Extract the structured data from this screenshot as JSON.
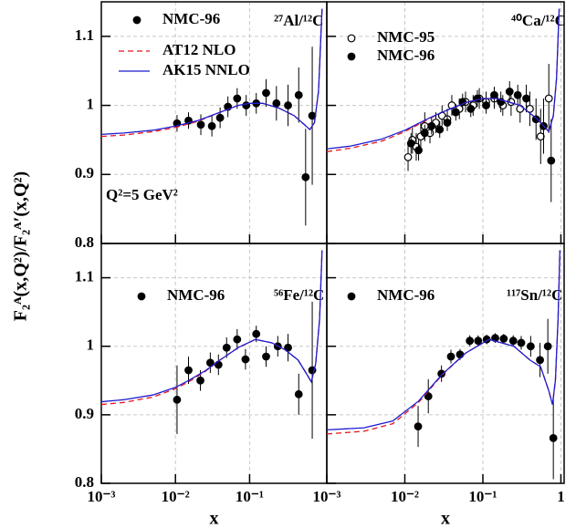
{
  "y_label": "F₂ᴬ(x,Q²)/F₂ᴬ′(x,Q²)",
  "chart_data": [
    {
      "type": "scatter",
      "title": "²⁷Al/¹²C",
      "annotation": "Q²=5 GeV²",
      "xlog": true,
      "xlim": [
        0.001,
        1.1
      ],
      "ylim": [
        0.8,
        1.15
      ],
      "grid": true,
      "xticks": [
        0.001,
        0.01,
        0.1
      ],
      "yticks": [
        0.8,
        0.9,
        1,
        1.1
      ],
      "show_xtick_labels": false,
      "show_ytick_labels": true,
      "series": [
        {
          "name": "NMC-96",
          "kind": "points",
          "marker": "filled",
          "color": "#000000",
          "x": [
            0.0105,
            0.015,
            0.022,
            0.031,
            0.04,
            0.051,
            0.068,
            0.09,
            0.123,
            0.167,
            0.23,
            0.33,
            0.46,
            0.57,
            0.7
          ],
          "values": [
            0.974,
            0.978,
            0.972,
            0.97,
            0.982,
            0.998,
            1.01,
            1.0,
            1.003,
            1.018,
            1.003,
            1.0,
            1.015,
            0.896,
            0.985
          ],
          "errors": [
            0.012,
            0.012,
            0.015,
            0.015,
            0.015,
            0.015,
            0.015,
            0.015,
            0.015,
            0.02,
            0.025,
            0.03,
            0.04,
            0.07,
            0.1
          ]
        },
        {
          "name": "AT12  NLO",
          "kind": "line",
          "dash": true,
          "color": "#e8141c",
          "x": [
            0.001,
            0.002,
            0.005,
            0.01,
            0.02,
            0.04,
            0.07,
            0.1,
            0.15,
            0.25,
            0.4,
            0.55,
            0.65,
            0.75,
            0.85,
            0.95
          ],
          "values": [
            0.955,
            0.957,
            0.962,
            0.968,
            0.977,
            0.99,
            1.0,
            1.003,
            1.003,
            0.996,
            0.985,
            0.972,
            0.965,
            0.975,
            1.02,
            1.14
          ]
        },
        {
          "name": "AK15 NNLO",
          "kind": "line",
          "dash": false,
          "color": "#1c1cd0",
          "x": [
            0.001,
            0.002,
            0.005,
            0.01,
            0.02,
            0.04,
            0.07,
            0.1,
            0.15,
            0.25,
            0.4,
            0.55,
            0.65,
            0.75,
            0.85,
            0.95
          ],
          "values": [
            0.958,
            0.96,
            0.964,
            0.97,
            0.978,
            0.99,
            1.0,
            1.003,
            1.003,
            0.996,
            0.985,
            0.972,
            0.965,
            0.975,
            1.02,
            1.14
          ]
        }
      ]
    },
    {
      "type": "scatter",
      "title": "⁴⁰Ca/¹²C",
      "xlog": true,
      "xlim": [
        0.001,
        1.1
      ],
      "ylim": [
        0.8,
        1.15
      ],
      "grid": true,
      "xticks": [
        0.001,
        0.01,
        0.1,
        1
      ],
      "yticks": [
        0.8,
        0.9,
        1,
        1.1
      ],
      "show_xtick_labels": false,
      "show_ytick_labels": false,
      "series": [
        {
          "name": "NMC-95",
          "kind": "points",
          "marker": "open",
          "color": "#000000",
          "x": [
            0.011,
            0.0125,
            0.014,
            0.016,
            0.018,
            0.021,
            0.025,
            0.03,
            0.035,
            0.04,
            0.05,
            0.06,
            0.075,
            0.09,
            0.11,
            0.14,
            0.18,
            0.23,
            0.3,
            0.4,
            0.55,
            0.7
          ],
          "values": [
            0.925,
            0.95,
            0.94,
            0.955,
            0.97,
            0.96,
            0.975,
            0.985,
            0.98,
            1.0,
            0.995,
            1.005,
            1.0,
            1.01,
            1.005,
            1.01,
            1.0,
            1.005,
            0.995,
            0.995,
            0.955,
            1.01
          ],
          "errors": [
            0.02,
            0.02,
            0.02,
            0.02,
            0.02,
            0.015,
            0.015,
            0.015,
            0.015,
            0.015,
            0.015,
            0.015,
            0.015,
            0.015,
            0.015,
            0.015,
            0.015,
            0.02,
            0.02,
            0.025,
            0.04,
            0.05
          ]
        },
        {
          "name": "NMC-96",
          "kind": "points",
          "marker": "filled",
          "color": "#000000",
          "x": [
            0.012,
            0.015,
            0.018,
            0.022,
            0.028,
            0.035,
            0.045,
            0.055,
            0.07,
            0.085,
            0.11,
            0.14,
            0.17,
            0.22,
            0.28,
            0.36,
            0.48,
            0.6,
            0.75
          ],
          "values": [
            0.945,
            0.935,
            0.96,
            0.97,
            0.965,
            0.975,
            0.99,
            1.005,
            0.995,
            1.01,
            1.0,
            1.015,
            1.005,
            1.02,
            1.015,
            1.01,
            0.98,
            0.97,
            0.92
          ],
          "errors": [
            0.015,
            0.015,
            0.012,
            0.012,
            0.012,
            0.012,
            0.012,
            0.012,
            0.012,
            0.012,
            0.012,
            0.012,
            0.015,
            0.015,
            0.015,
            0.02,
            0.03,
            0.04,
            0.06
          ]
        },
        {
          "kind": "line",
          "dash": true,
          "color": "#e8141c",
          "x": [
            0.001,
            0.002,
            0.005,
            0.01,
            0.02,
            0.03,
            0.06,
            0.1,
            0.15,
            0.3,
            0.5,
            0.7,
            0.8,
            0.88,
            0.95
          ],
          "values": [
            0.933,
            0.938,
            0.948,
            0.962,
            0.98,
            0.99,
            1.004,
            1.01,
            1.01,
            1.0,
            0.98,
            0.962,
            0.985,
            1.04,
            1.14
          ]
        },
        {
          "kind": "line",
          "dash": false,
          "color": "#1c1cd0",
          "x": [
            0.001,
            0.002,
            0.005,
            0.01,
            0.02,
            0.03,
            0.06,
            0.1,
            0.15,
            0.3,
            0.5,
            0.7,
            0.8,
            0.88,
            0.95
          ],
          "values": [
            0.937,
            0.941,
            0.951,
            0.964,
            0.981,
            0.99,
            1.004,
            1.01,
            1.01,
            1.0,
            0.98,
            0.962,
            0.985,
            1.04,
            1.14
          ]
        }
      ]
    },
    {
      "type": "scatter",
      "title": "⁵⁶Fe/¹²C",
      "x_label": "x",
      "xlog": true,
      "xlim": [
        0.001,
        1.1
      ],
      "ylim": [
        0.8,
        1.15
      ],
      "grid": true,
      "xticks": [
        {
          "value": 0.001,
          "label": "10⁻³"
        },
        {
          "value": 0.01,
          "label": "10⁻²"
        },
        {
          "value": 0.1,
          "label": "10⁻¹"
        }
      ],
      "yticks": [
        0.8,
        0.9,
        1,
        1.1
      ],
      "show_xtick_labels": true,
      "show_ytick_labels": true,
      "series": [
        {
          "name": "NMC-96",
          "kind": "points",
          "marker": "filled",
          "color": "#000000",
          "x": [
            0.0105,
            0.015,
            0.0217,
            0.0295,
            0.038,
            0.049,
            0.068,
            0.088,
            0.123,
            0.167,
            0.24,
            0.33,
            0.46,
            0.7
          ],
          "values": [
            0.922,
            0.965,
            0.95,
            0.976,
            0.973,
            0.998,
            1.01,
            0.981,
            1.018,
            0.985,
            1.0,
            0.998,
            0.93,
            0.965
          ],
          "errors": [
            0.05,
            0.02,
            0.015,
            0.015,
            0.015,
            0.015,
            0.015,
            0.015,
            0.012,
            0.015,
            0.015,
            0.02,
            0.03,
            0.1
          ]
        },
        {
          "kind": "line",
          "dash": true,
          "color": "#e8141c",
          "x": [
            0.001,
            0.002,
            0.005,
            0.01,
            0.015,
            0.025,
            0.04,
            0.07,
            0.12,
            0.2,
            0.3,
            0.45,
            0.6,
            0.68,
            0.78,
            0.88,
            0.95
          ],
          "values": [
            0.915,
            0.918,
            0.926,
            0.938,
            0.948,
            0.963,
            0.98,
            0.998,
            1.01,
            1.005,
            0.995,
            0.98,
            0.958,
            0.948,
            0.975,
            1.04,
            1.14
          ]
        },
        {
          "kind": "line",
          "dash": false,
          "color": "#1c1cd0",
          "x": [
            0.001,
            0.002,
            0.005,
            0.01,
            0.015,
            0.025,
            0.04,
            0.07,
            0.12,
            0.2,
            0.3,
            0.45,
            0.6,
            0.68,
            0.78,
            0.88,
            0.95
          ],
          "values": [
            0.919,
            0.922,
            0.929,
            0.94,
            0.95,
            0.964,
            0.98,
            0.998,
            1.01,
            1.005,
            0.995,
            0.98,
            0.958,
            0.948,
            0.975,
            1.04,
            1.14
          ]
        }
      ]
    },
    {
      "type": "scatter",
      "title": "¹¹⁷Sn/¹²C",
      "x_label": "x",
      "xlog": true,
      "xlim": [
        0.001,
        1.1
      ],
      "ylim": [
        0.8,
        1.15
      ],
      "grid": true,
      "xticks": [
        {
          "value": 0.001,
          "label": "10⁻³"
        },
        {
          "value": 0.01,
          "label": "10⁻²"
        },
        {
          "value": 0.1,
          "label": "10⁻¹"
        },
        1
      ],
      "yticks": [
        0.8,
        0.9,
        1,
        1.1
      ],
      "show_xtick_labels": true,
      "show_ytick_labels": false,
      "series": [
        {
          "name": "NMC-96",
          "kind": "points",
          "marker": "filled",
          "color": "#000000",
          "x": [
            0.0148,
            0.02,
            0.0295,
            0.039,
            0.051,
            0.068,
            0.087,
            0.112,
            0.144,
            0.185,
            0.245,
            0.31,
            0.41,
            0.54,
            0.68,
            0.8
          ],
          "values": [
            0.883,
            0.927,
            0.96,
            0.985,
            0.988,
            1.008,
            1.008,
            1.01,
            1.012,
            1.011,
            1.008,
            1.005,
            1.0,
            0.98,
            1.0,
            0.866
          ],
          "errors": [
            0.03,
            0.025,
            0.012,
            0.01,
            0.008,
            0.008,
            0.008,
            0.007,
            0.007,
            0.007,
            0.008,
            0.01,
            0.015,
            0.025,
            0.04,
            0.06
          ]
        },
        {
          "kind": "line",
          "dash": true,
          "color": "#e8141c",
          "x": [
            0.001,
            0.003,
            0.007,
            0.015,
            0.03,
            0.06,
            0.12,
            0.25,
            0.4,
            0.55,
            0.7,
            0.78,
            0.85,
            0.92,
            0.97
          ],
          "values": [
            0.872,
            0.876,
            0.887,
            0.918,
            0.958,
            0.99,
            1.01,
            1.0,
            0.98,
            0.97,
            0.935,
            0.915,
            0.95,
            1.04,
            1.14
          ]
        },
        {
          "kind": "line",
          "dash": false,
          "color": "#1c1cd0",
          "x": [
            0.001,
            0.003,
            0.007,
            0.015,
            0.03,
            0.06,
            0.12,
            0.25,
            0.4,
            0.55,
            0.7,
            0.78,
            0.85,
            0.92,
            0.97
          ],
          "values": [
            0.878,
            0.881,
            0.891,
            0.92,
            0.959,
            0.99,
            1.01,
            1.0,
            0.98,
            0.97,
            0.935,
            0.915,
            0.95,
            1.04,
            1.14
          ]
        }
      ]
    }
  ]
}
